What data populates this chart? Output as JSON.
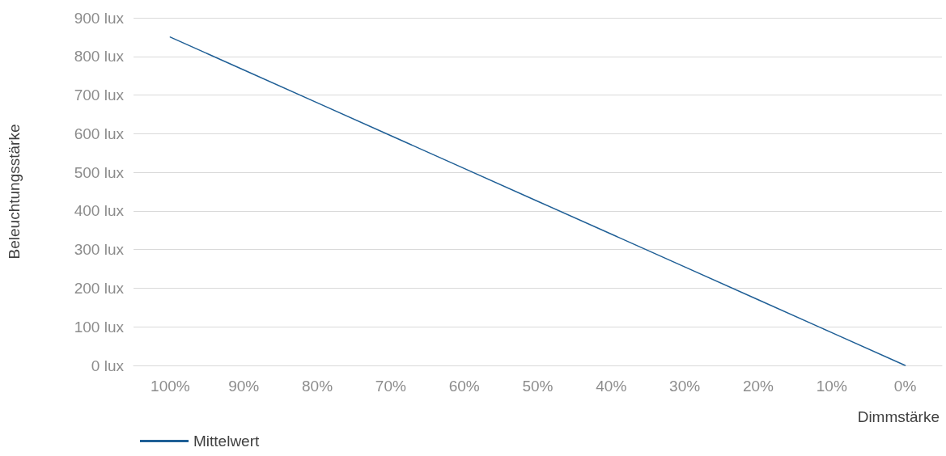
{
  "chart_data": {
    "type": "line",
    "xlabel": "Dimmstärke",
    "ylabel": "Beleuchtungsstärke",
    "categories": [
      "100%",
      "90%",
      "80%",
      "70%",
      "60%",
      "50%",
      "40%",
      "30%",
      "20%",
      "10%",
      "0%"
    ],
    "series": [
      {
        "name": "Mittelwert",
        "color": "#1f5f96",
        "values": [
          850,
          765,
          680,
          595,
          510,
          425,
          340,
          255,
          170,
          85,
          0
        ]
      }
    ],
    "ylim": [
      0,
      900
    ],
    "yticks": [
      {
        "value": 0,
        "label": "0 lux"
      },
      {
        "value": 100,
        "label": "100 lux"
      },
      {
        "value": 200,
        "label": "200 lux"
      },
      {
        "value": 300,
        "label": "300 lux"
      },
      {
        "value": 400,
        "label": "400 lux"
      },
      {
        "value": 500,
        "label": "500 lux"
      },
      {
        "value": 600,
        "label": "600 lux"
      },
      {
        "value": 700,
        "label": "700 lux"
      },
      {
        "value": 800,
        "label": "800 lux"
      },
      {
        "value": 900,
        "label": "900 lux"
      }
    ],
    "grid": "y",
    "legend": "bottom left",
    "marker": "none",
    "line_style": "solid"
  }
}
